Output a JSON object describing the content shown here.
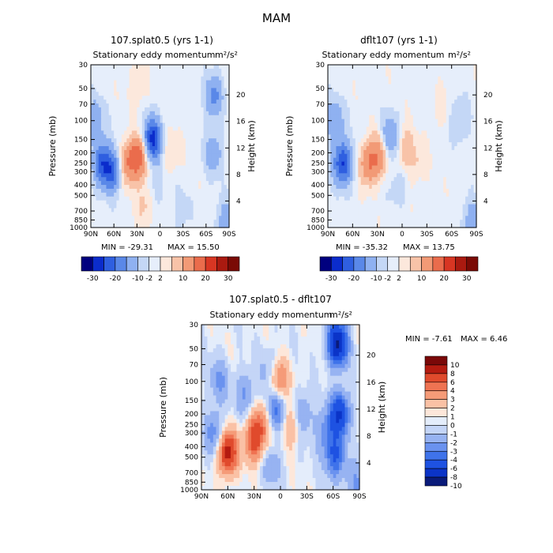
{
  "figure_title": "MAM",
  "color_scale": {
    "main_colors": [
      "#00007f",
      "#0b2ccc",
      "#2f5fe0",
      "#5a88e8",
      "#8fb1f1",
      "#c4d7f6",
      "#e6eefb",
      "#fce8dc",
      "#f8c3a8",
      "#f29a76",
      "#ea6c4c",
      "#d83623",
      "#aa1a10",
      "#7a0a05"
    ],
    "diff_colors": [
      "#0a1b7a",
      "#0b34c8",
      "#1e52e2",
      "#3f73ea",
      "#6a92ef",
      "#97b3f2",
      "#c4d5f7",
      "#e4edfb",
      "#fde7da",
      "#fac1a5",
      "#f59b78",
      "#ef7352",
      "#e04a2c",
      "#b41b10",
      "#7a0808"
    ]
  },
  "chart_data": [
    {
      "type": "heatmap",
      "subtitle": "107.splat0.5 (yrs 1-1)",
      "title": "Stationary eddy momentum",
      "units": "m²/s²",
      "ylabel": "Pressure (mb)",
      "ylabel_right": "Height (km)",
      "x_ticks": [
        "90N",
        "60N",
        "30N",
        "0",
        "30S",
        "60S",
        "90S"
      ],
      "y_ticks": [
        "30",
        "50",
        "70",
        "100",
        "150",
        "200",
        "250",
        "300",
        "400",
        "500",
        "700",
        "850",
        "1000"
      ],
      "y_ticks_right": [
        "20",
        "16",
        "12",
        "8",
        "4"
      ],
      "min_label": "MIN = -29.31",
      "max_label": "MAX = 15.50",
      "colorbar_labels": [
        "-30",
        "-20",
        "-10",
        "-2",
        "2",
        "10",
        "20",
        "30"
      ],
      "features": [
        {
          "lat": 75,
          "p": 250,
          "value": -17
        },
        {
          "lat": 85,
          "p": 100,
          "value": -9
        },
        {
          "lat": 62,
          "p": 300,
          "value": -14
        },
        {
          "lat": 42,
          "p": 250,
          "value": 10
        },
        {
          "lat": 27,
          "p": 220,
          "value": 14
        },
        {
          "lat": 20,
          "p": 600,
          "value": 4
        },
        {
          "lat": 10,
          "p": 150,
          "value": -22
        },
        {
          "lat": 5,
          "p": 400,
          "value": -3
        },
        {
          "lat": -15,
          "p": 200,
          "value": 3
        },
        {
          "lat": -28,
          "p": 700,
          "value": -3
        },
        {
          "lat": -70,
          "p": 60,
          "value": -11
        },
        {
          "lat": -70,
          "p": 200,
          "value": -8
        },
        {
          "lat": 30,
          "p": 50,
          "value": 3
        },
        {
          "lat": -85,
          "p": 900,
          "value": -8
        }
      ]
    },
    {
      "type": "heatmap",
      "subtitle": "dflt107 (yrs 1-1)",
      "title": "Stationary eddy momentum",
      "units": "m²/s²",
      "ylabel": "Pressure (mb)",
      "ylabel_right": "Height (km)",
      "x_ticks": [
        "90N",
        "60N",
        "30N",
        "0",
        "30S",
        "60S",
        "90S"
      ],
      "y_ticks": [
        "30",
        "50",
        "70",
        "100",
        "150",
        "200",
        "250",
        "300",
        "400",
        "500",
        "700",
        "850",
        "1000"
      ],
      "y_ticks_right": [
        "20",
        "16",
        "12",
        "8",
        "4"
      ],
      "min_label": "MIN = -35.32",
      "max_label": "MAX = 13.75",
      "colorbar_labels": [
        "-30",
        "-20",
        "-10",
        "-2",
        "2",
        "10",
        "20",
        "30"
      ],
      "features": [
        {
          "lat": 72,
          "p": 250,
          "value": -20
        },
        {
          "lat": 82,
          "p": 100,
          "value": -9
        },
        {
          "lat": 40,
          "p": 250,
          "value": 11
        },
        {
          "lat": 25,
          "p": 200,
          "value": 9
        },
        {
          "lat": 15,
          "p": 150,
          "value": -12
        },
        {
          "lat": -3,
          "p": 180,
          "value": 6
        },
        {
          "lat": -20,
          "p": 250,
          "value": 3
        },
        {
          "lat": -45,
          "p": 80,
          "value": 2
        },
        {
          "lat": -70,
          "p": 100,
          "value": -5
        },
        {
          "lat": 5,
          "p": 400,
          "value": -3
        },
        {
          "lat": -85,
          "p": 900,
          "value": -8
        }
      ]
    },
    {
      "type": "heatmap",
      "subtitle": "107.splat0.5 - dflt107",
      "title": "Stationary eddy momentum",
      "units": "m²/s²",
      "ylabel": "Pressure (mb)",
      "ylabel_right": "Height (km)",
      "x_ticks": [
        "90N",
        "60N",
        "30N",
        "0",
        "30S",
        "60S",
        "90S"
      ],
      "y_ticks": [
        "30",
        "50",
        "70",
        "100",
        "150",
        "200",
        "250",
        "300",
        "400",
        "500",
        "700",
        "850",
        "1000"
      ],
      "y_ticks_right": [
        "20",
        "16",
        "12",
        "8",
        "4"
      ],
      "min_label": "MIN =  -7.61",
      "max_label": "MAX =   6.46",
      "colorbar_labels": [
        "10",
        "8",
        "6",
        "4",
        "3",
        "2",
        "1",
        "0",
        "-1",
        "-2",
        "-3",
        "-4",
        "-6",
        "-8",
        "-10"
      ],
      "features": [
        {
          "lat": 60,
          "p": 450,
          "value": 6
        },
        {
          "lat": 75,
          "p": 300,
          "value": -2.5
        },
        {
          "lat": 70,
          "p": 100,
          "value": -2
        },
        {
          "lat": 40,
          "p": 130,
          "value": -2
        },
        {
          "lat": 30,
          "p": 350,
          "value": 4
        },
        {
          "lat": 22,
          "p": 250,
          "value": 2.5
        },
        {
          "lat": 12,
          "p": 80,
          "value": -1.5
        },
        {
          "lat": 2,
          "p": 100,
          "value": 3.5
        },
        {
          "lat": 5,
          "p": 180,
          "value": -3.5
        },
        {
          "lat": 10,
          "p": 600,
          "value": -1.5
        },
        {
          "lat": -12,
          "p": 250,
          "value": 2
        },
        {
          "lat": -25,
          "p": 200,
          "value": -2
        },
        {
          "lat": -65,
          "p": 45,
          "value": -8
        },
        {
          "lat": -67,
          "p": 200,
          "value": -6
        },
        {
          "lat": -62,
          "p": 500,
          "value": -4
        },
        {
          "lat": -50,
          "p": 300,
          "value": -2
        },
        {
          "lat": -85,
          "p": 900,
          "value": -2
        }
      ]
    }
  ]
}
